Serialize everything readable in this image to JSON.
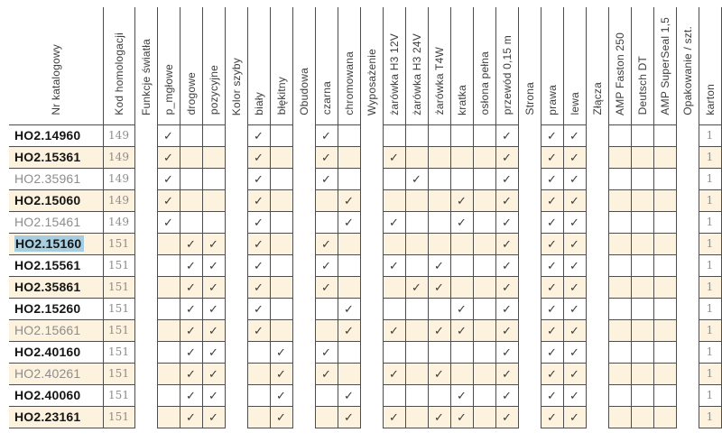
{
  "theme": {
    "line_color": "#4d4d4d",
    "stripe_color": "#fcf2de",
    "highlight_color": "#a6cde0",
    "header_text_color": "#3d3d3d",
    "code_text_color": "#161616",
    "muted_text_color": "#8d8d8d",
    "check_color": "#3a3a3a"
  },
  "table": {
    "check_glyph": "✓",
    "columns": [
      {
        "id": "nr",
        "label": "Nr katalogowy",
        "kind": "code"
      },
      {
        "id": "kod",
        "label": "Kod homologacji",
        "kind": "kod"
      },
      {
        "id": "funkcje",
        "label": "Funkcje światła",
        "kind": "gap"
      },
      {
        "id": "p_mglowe",
        "label": "p_mgłowe",
        "kind": "check"
      },
      {
        "id": "drogowe",
        "label": "drogowe",
        "kind": "check"
      },
      {
        "id": "pozycyjne",
        "label": "pozycyjne",
        "kind": "check"
      },
      {
        "id": "kolor_szyby",
        "label": "Kolor szyby",
        "kind": "gap"
      },
      {
        "id": "bialy",
        "label": "biały",
        "kind": "check"
      },
      {
        "id": "blekitny",
        "label": "błękitny",
        "kind": "check"
      },
      {
        "id": "obudowa",
        "label": "Obudowa",
        "kind": "gap"
      },
      {
        "id": "czarna",
        "label": "czarna",
        "kind": "check"
      },
      {
        "id": "chromowana",
        "label": "chromowana",
        "kind": "check"
      },
      {
        "id": "wyposazenie",
        "label": "Wyposażenie",
        "kind": "gap"
      },
      {
        "id": "zarowka_h3_12v",
        "label": "żarówka H3 12V",
        "kind": "check"
      },
      {
        "id": "zarowka_h3_24v",
        "label": "żarówka H3 24V",
        "kind": "check"
      },
      {
        "id": "zarowka_t4w",
        "label": "żarówka T4W",
        "kind": "check"
      },
      {
        "id": "kratka",
        "label": "kratka",
        "kind": "check"
      },
      {
        "id": "oslona_pelna",
        "label": "osłona pełna",
        "kind": "check"
      },
      {
        "id": "przewod",
        "label": "przewód 0,15 m",
        "kind": "check"
      },
      {
        "id": "strona",
        "label": "Strona",
        "kind": "gap"
      },
      {
        "id": "prawa",
        "label": "prawa",
        "kind": "check"
      },
      {
        "id": "lewa",
        "label": "lewa",
        "kind": "check"
      },
      {
        "id": "zlacza",
        "label": "Złącza",
        "kind": "gap"
      },
      {
        "id": "amp_faston_250",
        "label": "AMP Faston 250",
        "kind": "check"
      },
      {
        "id": "deutsch_dt",
        "label": "Deutsch DT",
        "kind": "check"
      },
      {
        "id": "amp_superseal",
        "label": "AMP SuperSeal 1,5",
        "kind": "check"
      },
      {
        "id": "opakowanie",
        "label": "Opakowanie / szt.",
        "kind": "gap"
      },
      {
        "id": "karton",
        "label": "karton",
        "kind": "num"
      }
    ],
    "rows": [
      {
        "code": "HO2.14960",
        "kod": "149",
        "style": "bold",
        "highlighted": false,
        "karton": "1",
        "checks": [
          "p_mglowe",
          "bialy",
          "czarna",
          "przewod",
          "prawa",
          "lewa"
        ]
      },
      {
        "code": "HO2.15361",
        "kod": "149",
        "style": "bold",
        "highlighted": false,
        "karton": "1",
        "checks": [
          "p_mglowe",
          "bialy",
          "czarna",
          "zarowka_h3_12v",
          "przewod",
          "prawa",
          "lewa"
        ]
      },
      {
        "code": "HO2.35961",
        "kod": "149",
        "style": "muted",
        "highlighted": false,
        "karton": "1",
        "checks": [
          "p_mglowe",
          "bialy",
          "czarna",
          "zarowka_h3_24v",
          "przewod",
          "prawa",
          "lewa"
        ]
      },
      {
        "code": "HO2.15060",
        "kod": "149",
        "style": "bold",
        "highlighted": false,
        "karton": "1",
        "checks": [
          "p_mglowe",
          "bialy",
          "chromowana",
          "kratka",
          "przewod",
          "prawa",
          "lewa"
        ]
      },
      {
        "code": "HO2.15461",
        "kod": "149",
        "style": "muted",
        "highlighted": false,
        "karton": "1",
        "checks": [
          "p_mglowe",
          "bialy",
          "chromowana",
          "zarowka_h3_12v",
          "kratka",
          "przewod",
          "prawa",
          "lewa"
        ]
      },
      {
        "code": "HO2.15160",
        "kod": "151",
        "style": "bold",
        "highlighted": true,
        "karton": "1",
        "checks": [
          "drogowe",
          "pozycyjne",
          "bialy",
          "czarna",
          "przewod",
          "prawa",
          "lewa"
        ]
      },
      {
        "code": "HO2.15561",
        "kod": "151",
        "style": "bold",
        "highlighted": false,
        "karton": "1",
        "checks": [
          "drogowe",
          "pozycyjne",
          "bialy",
          "czarna",
          "zarowka_h3_12v",
          "zarowka_t4w",
          "przewod",
          "prawa",
          "lewa"
        ]
      },
      {
        "code": "HO2.35861",
        "kod": "151",
        "style": "bold",
        "highlighted": false,
        "karton": "1",
        "checks": [
          "drogowe",
          "pozycyjne",
          "bialy",
          "czarna",
          "zarowka_h3_24v",
          "zarowka_t4w",
          "przewod",
          "prawa",
          "lewa"
        ]
      },
      {
        "code": "HO2.15260",
        "kod": "151",
        "style": "bold",
        "highlighted": false,
        "karton": "1",
        "checks": [
          "drogowe",
          "pozycyjne",
          "bialy",
          "chromowana",
          "kratka",
          "przewod",
          "prawa",
          "lewa"
        ]
      },
      {
        "code": "HO2.15661",
        "kod": "151",
        "style": "muted",
        "highlighted": false,
        "karton": "1",
        "checks": [
          "drogowe",
          "pozycyjne",
          "bialy",
          "chromowana",
          "zarowka_h3_12v",
          "zarowka_t4w",
          "kratka",
          "przewod",
          "prawa",
          "lewa"
        ]
      },
      {
        "code": "HO2.40160",
        "kod": "151",
        "style": "bold",
        "highlighted": false,
        "karton": "1",
        "checks": [
          "drogowe",
          "pozycyjne",
          "blekitny",
          "czarna",
          "przewod",
          "prawa",
          "lewa"
        ]
      },
      {
        "code": "HO2.40261",
        "kod": "151",
        "style": "muted",
        "highlighted": false,
        "karton": "1",
        "checks": [
          "drogowe",
          "pozycyjne",
          "blekitny",
          "czarna",
          "zarowka_h3_12v",
          "zarowka_t4w",
          "przewod",
          "prawa",
          "lewa"
        ]
      },
      {
        "code": "HO2.40060",
        "kod": "151",
        "style": "bold",
        "highlighted": false,
        "karton": "1",
        "checks": [
          "drogowe",
          "pozycyjne",
          "blekitny",
          "chromowana",
          "kratka",
          "przewod",
          "prawa",
          "lewa"
        ]
      },
      {
        "code": "HO2.23161",
        "kod": "151",
        "style": "bold",
        "highlighted": false,
        "karton": "1",
        "checks": [
          "drogowe",
          "pozycyjne",
          "blekitny",
          "chromowana",
          "zarowka_h3_12v",
          "zarowka_t4w",
          "kratka",
          "przewod",
          "prawa",
          "lewa"
        ]
      }
    ]
  }
}
